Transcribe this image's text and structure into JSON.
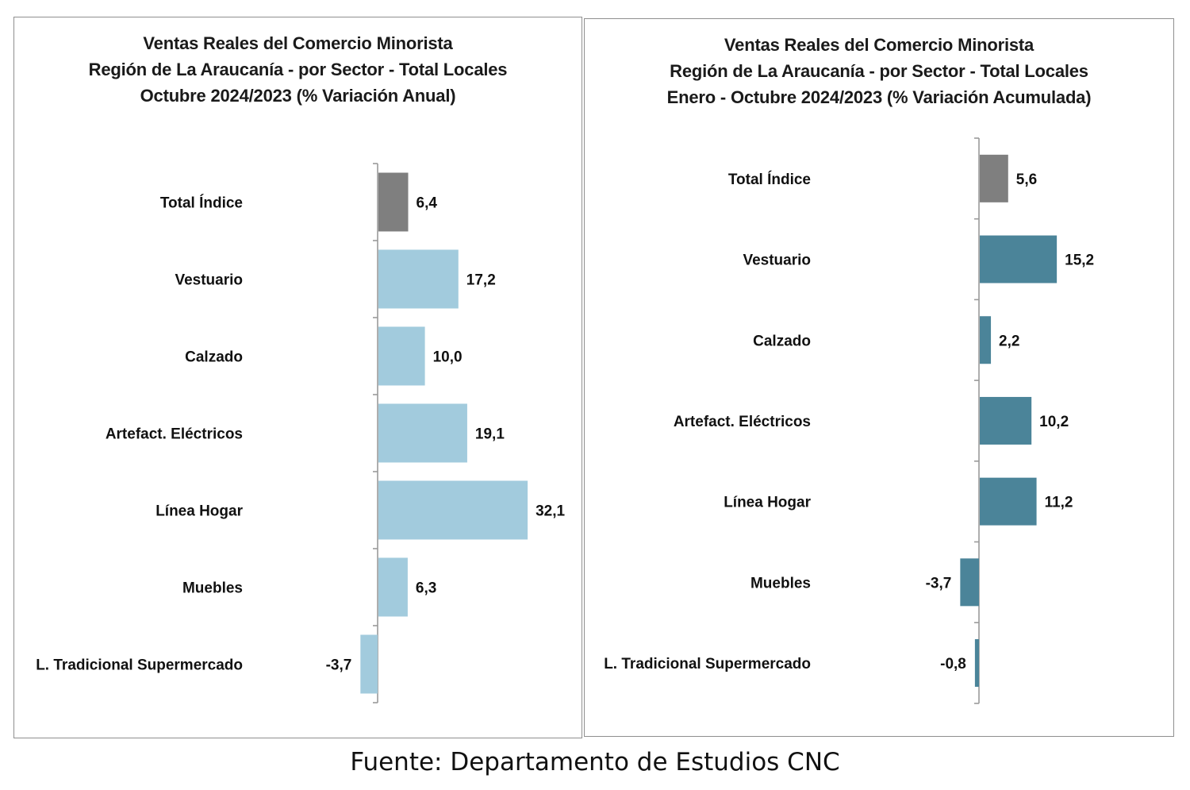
{
  "colors": {
    "total_bar": "#7f7f7f",
    "chart1_bar": "#a2cbdd",
    "chart2_bar": "#4b8499",
    "axis": "#9a9a9a",
    "panel_border": "#8f8f8f"
  },
  "source": "Fuente: Departamento de Estudios CNC",
  "chart_data": [
    {
      "type": "bar",
      "orientation": "horizontal",
      "title_lines": [
        "Ventas Reales del Comercio Minorista",
        "Región de La Araucanía - por Sector - Total Locales",
        "Octubre 2024/2023 (% Variación Anual)"
      ],
      "categories": [
        "Total Índice",
        "Vestuario",
        "Calzado",
        "Artefact. Eléctricos",
        "Línea Hogar",
        "Muebles",
        "L. Tradicional Supermercado"
      ],
      "values": [
        6.4,
        17.2,
        10.0,
        19.1,
        32.1,
        6.3,
        -3.7
      ],
      "value_labels": [
        "6,4",
        "17,2",
        "10,0",
        "19,1",
        "32,1",
        "6,3",
        "-3,7"
      ],
      "xlim": [
        -3.7,
        32.1
      ],
      "grid": false,
      "legend": "none"
    },
    {
      "type": "bar",
      "orientation": "horizontal",
      "title_lines": [
        "Ventas Reales del Comercio Minorista",
        "Región de La Araucanía - por Sector - Total Locales",
        "Enero - Octubre 2024/2023 (% Variación Acumulada)"
      ],
      "categories": [
        "Total Índice",
        "Vestuario",
        "Calzado",
        "Artefact. Eléctricos",
        "Línea Hogar",
        "Muebles",
        "L. Tradicional Supermercado"
      ],
      "values": [
        5.6,
        15.2,
        2.2,
        10.2,
        11.2,
        -3.7,
        -0.8
      ],
      "value_labels": [
        "5,6",
        "15,2",
        "2,2",
        "10,2",
        "11,2",
        "-3,7",
        "-0,8"
      ],
      "xlim": [
        -3.7,
        15.2
      ],
      "grid": false,
      "legend": "none"
    }
  ]
}
